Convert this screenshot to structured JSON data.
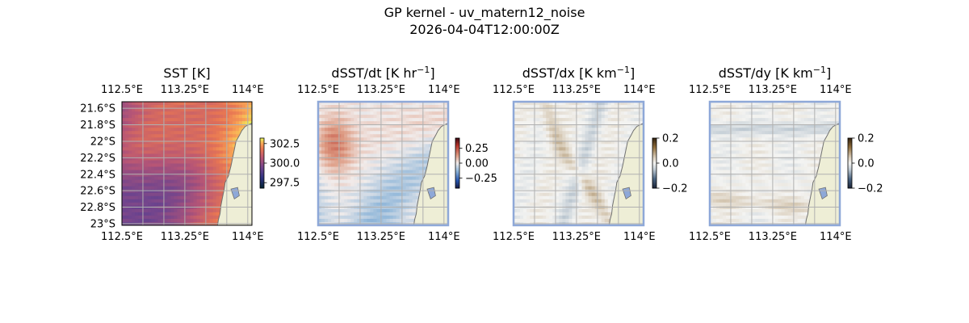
{
  "figure": {
    "title_line1": "GP kernel - uv_matern12_noise",
    "title_line2": "2026-04-04T12:00:00Z"
  },
  "colors": {
    "land": "#eeeed6",
    "ocean_edge": "#8ea8d8",
    "coast": "#707070",
    "grid": "#b0b0b0"
  },
  "chart_data": [
    {
      "type": "heatmap",
      "title": "SST [K]",
      "title_sup": "",
      "title_suffix": "",
      "xlabel": "",
      "ylabel": "",
      "xlim": [
        112.5,
        114.05
      ],
      "ylim": [
        -23.02,
        -21.52
      ],
      "x_ticks": [
        {
          "value": 112.5,
          "label": "112.5°E"
        },
        {
          "value": 113.25,
          "label": "113.25°E"
        },
        {
          "value": 114.0,
          "label": "114°E"
        }
      ],
      "y_ticks": [
        {
          "value": -21.6,
          "label": "21.6°S"
        },
        {
          "value": -21.8,
          "label": "21.8°S"
        },
        {
          "value": -22.0,
          "label": "22°S"
        },
        {
          "value": -22.2,
          "label": "22.2°S"
        },
        {
          "value": -22.4,
          "label": "22.4°S"
        },
        {
          "value": -22.6,
          "label": "22.6°S"
        },
        {
          "value": -22.8,
          "label": "22.8°S"
        },
        {
          "value": -23.0,
          "label": "23°S"
        }
      ],
      "show_y_labels": true,
      "colormap": "thermal",
      "colorbar": {
        "range": [
          296.8,
          303.2
        ],
        "ticks": [
          302.5,
          300.0,
          297.5
        ],
        "tick_labels": [
          "302.5",
          "300.0",
          "297.5"
        ]
      },
      "data_range_K": [
        297.0,
        303.0
      ],
      "grid": true
    },
    {
      "type": "heatmap",
      "title": "dSST/dt [K hr",
      "title_sup": "−1",
      "title_suffix": "]",
      "xlabel": "",
      "ylabel": "",
      "xlim": [
        112.5,
        114.05
      ],
      "ylim": [
        -23.02,
        -21.52
      ],
      "x_ticks": [
        {
          "value": 112.5,
          "label": "112.5°E"
        },
        {
          "value": 113.25,
          "label": "113.25°E"
        },
        {
          "value": 114.0,
          "label": "114°E"
        }
      ],
      "y_ticks": [],
      "show_y_labels": false,
      "colormap": "balance",
      "colorbar": {
        "range": [
          -0.42,
          0.42
        ],
        "ticks": [
          0.25,
          0.0,
          -0.25
        ],
        "tick_labels": [
          "0.25",
          "0.00",
          "−0.25"
        ]
      },
      "data_range": [
        -0.25,
        0.3
      ],
      "grid": true
    },
    {
      "type": "heatmap",
      "title": "dSST/dx [K km",
      "title_sup": "−1",
      "title_suffix": "]",
      "xlabel": "",
      "ylabel": "",
      "xlim": [
        112.5,
        114.05
      ],
      "ylim": [
        -23.02,
        -21.52
      ],
      "x_ticks": [
        {
          "value": 112.5,
          "label": "112.5°E"
        },
        {
          "value": 113.25,
          "label": "113.25°E"
        },
        {
          "value": 114.0,
          "label": "114°E"
        }
      ],
      "y_ticks": [],
      "show_y_labels": false,
      "colormap": "diff",
      "colorbar": {
        "range": [
          -0.2,
          0.2
        ],
        "ticks": [
          0.2,
          0.0,
          -0.2
        ],
        "tick_labels": [
          "0.2",
          "0.0",
          "−0.2"
        ]
      },
      "data_range": [
        -0.06,
        0.08
      ],
      "grid": true
    },
    {
      "type": "heatmap",
      "title": "dSST/dy [K km",
      "title_sup": "−1",
      "title_suffix": "]",
      "xlabel": "",
      "ylabel": "",
      "xlim": [
        112.5,
        114.05
      ],
      "ylim": [
        -23.02,
        -21.52
      ],
      "x_ticks": [
        {
          "value": 112.5,
          "label": "112.5°E"
        },
        {
          "value": 113.25,
          "label": "113.25°E"
        },
        {
          "value": 114.0,
          "label": "114°E"
        }
      ],
      "y_ticks": [],
      "show_y_labels": false,
      "colormap": "diff",
      "colorbar": {
        "range": [
          -0.2,
          0.2
        ],
        "ticks": [
          0.2,
          0.0,
          -0.2
        ],
        "tick_labels": [
          "0.2",
          "0.0",
          "−0.2"
        ]
      },
      "data_range": [
        -0.08,
        0.06
      ],
      "grid": true
    }
  ]
}
